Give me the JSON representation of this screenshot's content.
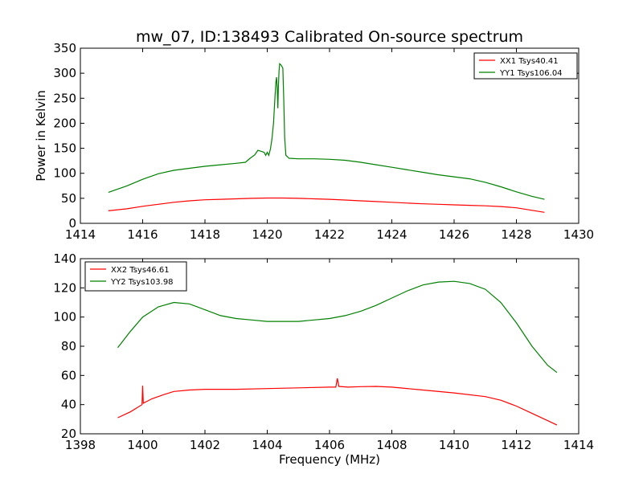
{
  "figure": {
    "title": "mw_07, ID:138493 Calibrated On-source spectrum",
    "xlabel": "Frequency (MHz)"
  },
  "chart_data": [
    {
      "type": "line",
      "title": "mw_07, ID:138493 Calibrated On-source spectrum",
      "xlabel": "",
      "ylabel": "Power in Kelvin",
      "xlim": [
        1414,
        1430
      ],
      "ylim": [
        0,
        350
      ],
      "xticks": [
        1414,
        1416,
        1418,
        1420,
        1422,
        1424,
        1426,
        1428,
        1430
      ],
      "yticks": [
        0,
        50,
        100,
        150,
        200,
        250,
        300,
        350
      ],
      "grid": false,
      "legend_position": "top-right",
      "series": [
        {
          "name": "XX1 Tsys40.41",
          "color": "#ff0000",
          "points": [
            [
              1414.9,
              25
            ],
            [
              1415.5,
              29
            ],
            [
              1416,
              34
            ],
            [
              1416.5,
              38
            ],
            [
              1417,
              42
            ],
            [
              1417.5,
              45
            ],
            [
              1418,
              47
            ],
            [
              1418.5,
              48
            ],
            [
              1419,
              49
            ],
            [
              1419.5,
              50
            ],
            [
              1420,
              50.5
            ],
            [
              1420.5,
              50.5
            ],
            [
              1421,
              50
            ],
            [
              1421.5,
              49
            ],
            [
              1422,
              48
            ],
            [
              1422.5,
              46.5
            ],
            [
              1423,
              45
            ],
            [
              1423.5,
              43.5
            ],
            [
              1424,
              42
            ],
            [
              1424.5,
              40.5
            ],
            [
              1425,
              39
            ],
            [
              1425.5,
              38
            ],
            [
              1426,
              37
            ],
            [
              1426.5,
              36
            ],
            [
              1427,
              35
            ],
            [
              1427.5,
              33.5
            ],
            [
              1428,
              31
            ],
            [
              1428.5,
              26
            ],
            [
              1428.9,
              22
            ]
          ]
        },
        {
          "name": "YY1 Tsys106.04",
          "color": "#008000",
          "points": [
            [
              1414.9,
              62
            ],
            [
              1415.5,
              75
            ],
            [
              1416,
              88
            ],
            [
              1416.5,
              99
            ],
            [
              1417,
              106
            ],
            [
              1417.5,
              110
            ],
            [
              1418,
              114
            ],
            [
              1418.5,
              117
            ],
            [
              1419,
              120
            ],
            [
              1419.3,
              122
            ],
            [
              1419.45,
              130
            ],
            [
              1419.6,
              137
            ],
            [
              1419.7,
              146
            ],
            [
              1419.8,
              144
            ],
            [
              1419.9,
              142
            ],
            [
              1419.95,
              136
            ],
            [
              1420.0,
              142
            ],
            [
              1420.05,
              136
            ],
            [
              1420.1,
              148
            ],
            [
              1420.15,
              168
            ],
            [
              1420.2,
              200
            ],
            [
              1420.25,
              255
            ],
            [
              1420.28,
              283
            ],
            [
              1420.3,
              292
            ],
            [
              1420.32,
              270
            ],
            [
              1420.34,
              230
            ],
            [
              1420.36,
              275
            ],
            [
              1420.38,
              305
            ],
            [
              1420.4,
              319
            ],
            [
              1420.45,
              316
            ],
            [
              1420.5,
              310
            ],
            [
              1420.53,
              250
            ],
            [
              1420.56,
              170
            ],
            [
              1420.6,
              136
            ],
            [
              1420.7,
              130
            ],
            [
              1421,
              129
            ],
            [
              1421.5,
              129
            ],
            [
              1422,
              128
            ],
            [
              1422.5,
              126
            ],
            [
              1423,
              122
            ],
            [
              1423.5,
              117
            ],
            [
              1424,
              112
            ],
            [
              1424.5,
              107
            ],
            [
              1425,
              102
            ],
            [
              1425.5,
              97
            ],
            [
              1426,
              93
            ],
            [
              1426.5,
              89
            ],
            [
              1427,
              82
            ],
            [
              1427.5,
              73
            ],
            [
              1428,
              63
            ],
            [
              1428.5,
              54
            ],
            [
              1428.9,
              48
            ]
          ]
        }
      ]
    },
    {
      "type": "line",
      "title": "",
      "xlabel": "Frequency (MHz)",
      "ylabel": "",
      "xlim": [
        1398,
        1414
      ],
      "ylim": [
        20,
        140
      ],
      "xticks": [
        1398,
        1400,
        1402,
        1404,
        1406,
        1408,
        1410,
        1412,
        1414
      ],
      "yticks": [
        20,
        40,
        60,
        80,
        100,
        120,
        140
      ],
      "grid": false,
      "legend_position": "top-left",
      "series": [
        {
          "name": "XX2 Tsys46.61",
          "color": "#ff0000",
          "points": [
            [
              1399.2,
              31
            ],
            [
              1399.6,
              35
            ],
            [
              1399.98,
              40
            ],
            [
              1400.0,
              53
            ],
            [
              1400.02,
              41
            ],
            [
              1400.3,
              44
            ],
            [
              1400.7,
              47
            ],
            [
              1401,
              49
            ],
            [
              1401.5,
              50
            ],
            [
              1402,
              50.5
            ],
            [
              1403,
              50.5
            ],
            [
              1404,
              51
            ],
            [
              1405,
              51.5
            ],
            [
              1406,
              52
            ],
            [
              1406.2,
              52
            ],
            [
              1406.25,
              58
            ],
            [
              1406.3,
              52.5
            ],
            [
              1406.6,
              52
            ],
            [
              1407,
              52.3
            ],
            [
              1407.5,
              52.5
            ],
            [
              1408,
              52
            ],
            [
              1409,
              50
            ],
            [
              1410,
              48
            ],
            [
              1411,
              45.5
            ],
            [
              1411.5,
              43
            ],
            [
              1412,
              39
            ],
            [
              1412.5,
              34
            ],
            [
              1413,
              29
            ],
            [
              1413.3,
              26
            ]
          ]
        },
        {
          "name": "YY2 Tsys103.98",
          "color": "#008000",
          "points": [
            [
              1399.2,
              79
            ],
            [
              1399.6,
              90
            ],
            [
              1400,
              100
            ],
            [
              1400.5,
              107
            ],
            [
              1401,
              110
            ],
            [
              1401.5,
              109
            ],
            [
              1402,
              105
            ],
            [
              1402.5,
              101
            ],
            [
              1403,
              99
            ],
            [
              1403.5,
              98
            ],
            [
              1404,
              97
            ],
            [
              1405,
              97
            ],
            [
              1405.5,
              98
            ],
            [
              1406,
              99
            ],
            [
              1406.5,
              101
            ],
            [
              1407,
              104
            ],
            [
              1407.5,
              108
            ],
            [
              1408,
              113
            ],
            [
              1408.5,
              118
            ],
            [
              1409,
              122
            ],
            [
              1409.5,
              124
            ],
            [
              1410,
              124.5
            ],
            [
              1410.5,
              123
            ],
            [
              1411,
              119
            ],
            [
              1411.5,
              110
            ],
            [
              1412,
              96
            ],
            [
              1412.5,
              80
            ],
            [
              1413,
              67
            ],
            [
              1413.3,
              62
            ]
          ]
        }
      ]
    }
  ]
}
